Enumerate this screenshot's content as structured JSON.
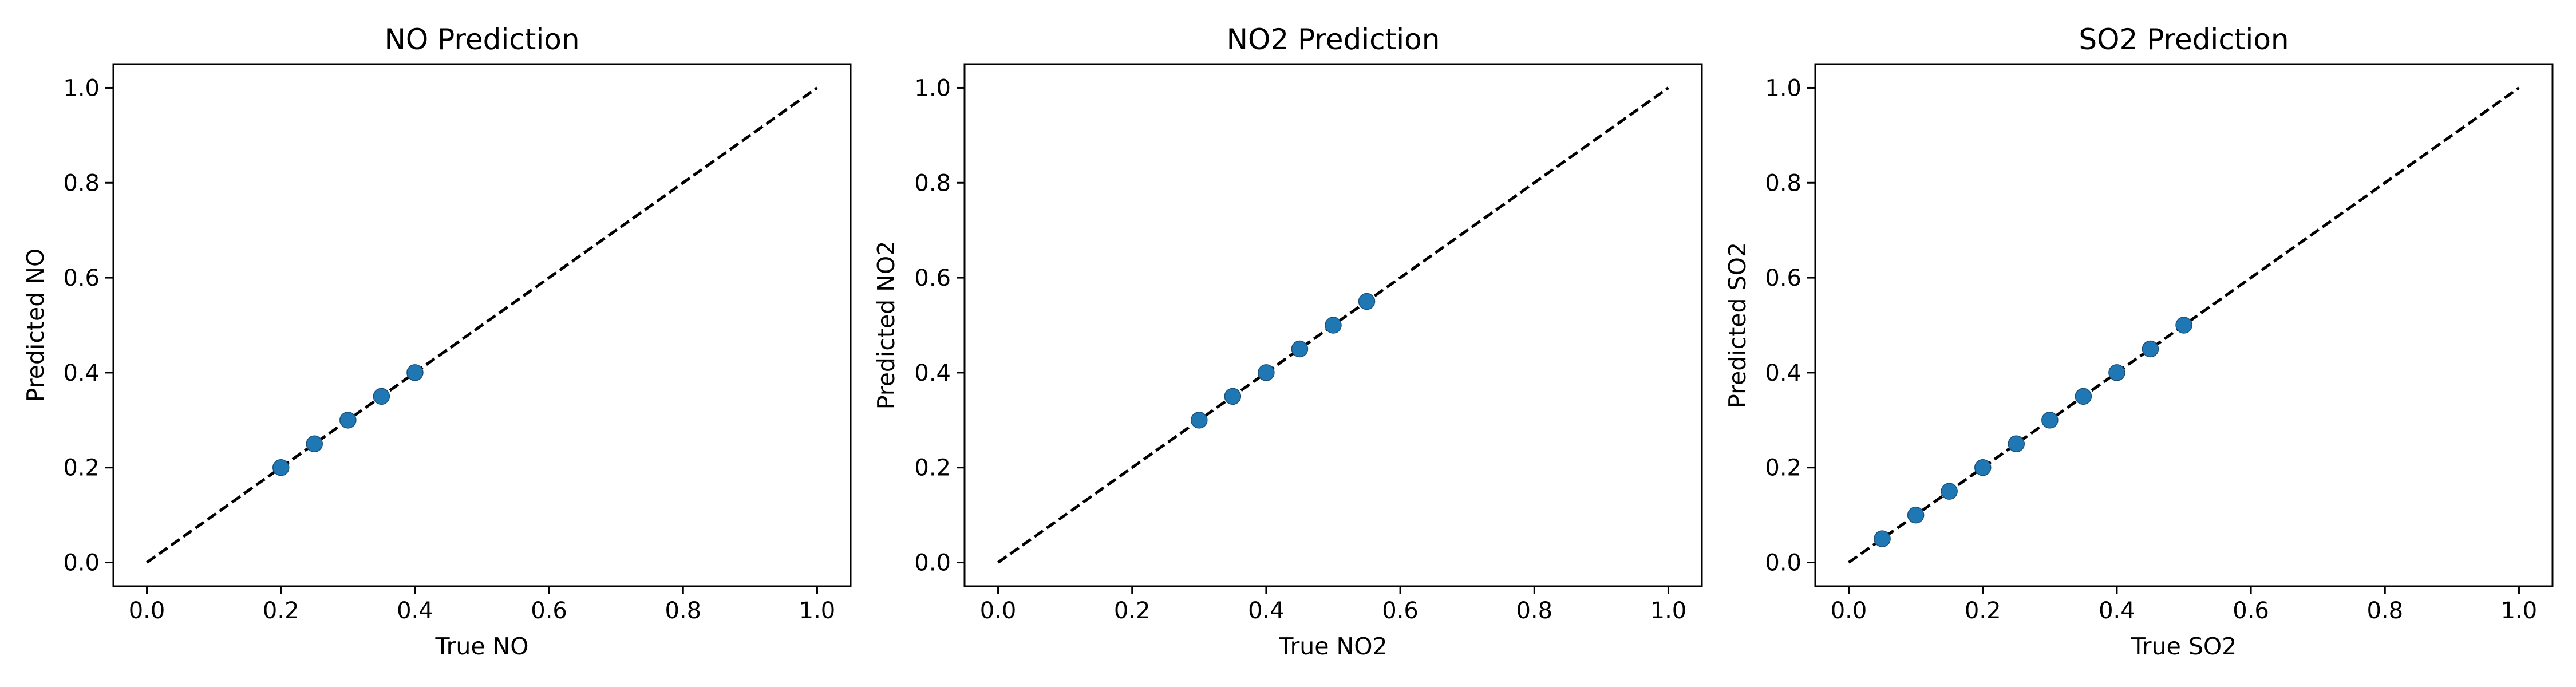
{
  "colors": {
    "marker": "#1f77b4",
    "marker_edge": "#1a4f7a",
    "reference_line": "#000000",
    "axes": "#000000",
    "background": "#ffffff"
  },
  "chart_data": [
    {
      "type": "scatter",
      "title": "NO Prediction",
      "xlabel": "True NO",
      "ylabel": "Predicted NO",
      "xlim": [
        -0.05,
        1.05
      ],
      "ylim": [
        -0.05,
        1.05
      ],
      "xticks": [
        "0.0",
        "0.2",
        "0.4",
        "0.6",
        "0.8",
        "1.0"
      ],
      "yticks": [
        "0.0",
        "0.2",
        "0.4",
        "0.6",
        "0.8",
        "1.0"
      ],
      "grid": false,
      "reference_line": {
        "x": [
          0,
          1
        ],
        "y": [
          0,
          1
        ],
        "style": "dashed"
      },
      "series": [
        {
          "x": [
            0.2,
            0.25,
            0.3,
            0.35,
            0.4
          ],
          "y": [
            0.2,
            0.25,
            0.3,
            0.35,
            0.4
          ]
        }
      ]
    },
    {
      "type": "scatter",
      "title": "NO2 Prediction",
      "xlabel": "True NO2",
      "ylabel": "Predicted NO2",
      "xlim": [
        -0.05,
        1.05
      ],
      "ylim": [
        -0.05,
        1.05
      ],
      "xticks": [
        "0.0",
        "0.2",
        "0.4",
        "0.6",
        "0.8",
        "1.0"
      ],
      "yticks": [
        "0.0",
        "0.2",
        "0.4",
        "0.6",
        "0.8",
        "1.0"
      ],
      "grid": false,
      "reference_line": {
        "x": [
          0,
          1
        ],
        "y": [
          0,
          1
        ],
        "style": "dashed"
      },
      "series": [
        {
          "x": [
            0.3,
            0.35,
            0.4,
            0.45,
            0.5,
            0.55
          ],
          "y": [
            0.3,
            0.35,
            0.4,
            0.45,
            0.5,
            0.55
          ]
        }
      ]
    },
    {
      "type": "scatter",
      "title": "SO2 Prediction",
      "xlabel": "True SO2",
      "ylabel": "Predicted SO2",
      "xlim": [
        -0.05,
        1.05
      ],
      "ylim": [
        -0.05,
        1.05
      ],
      "xticks": [
        "0.0",
        "0.2",
        "0.4",
        "0.6",
        "0.8",
        "1.0"
      ],
      "yticks": [
        "0.0",
        "0.2",
        "0.4",
        "0.6",
        "0.8",
        "1.0"
      ],
      "grid": false,
      "reference_line": {
        "x": [
          0,
          1
        ],
        "y": [
          0,
          1
        ],
        "style": "dashed"
      },
      "series": [
        {
          "x": [
            0.05,
            0.1,
            0.15,
            0.2,
            0.25,
            0.3,
            0.35,
            0.4,
            0.45,
            0.5
          ],
          "y": [
            0.05,
            0.1,
            0.15,
            0.2,
            0.25,
            0.3,
            0.35,
            0.4,
            0.45,
            0.5
          ]
        }
      ]
    }
  ]
}
